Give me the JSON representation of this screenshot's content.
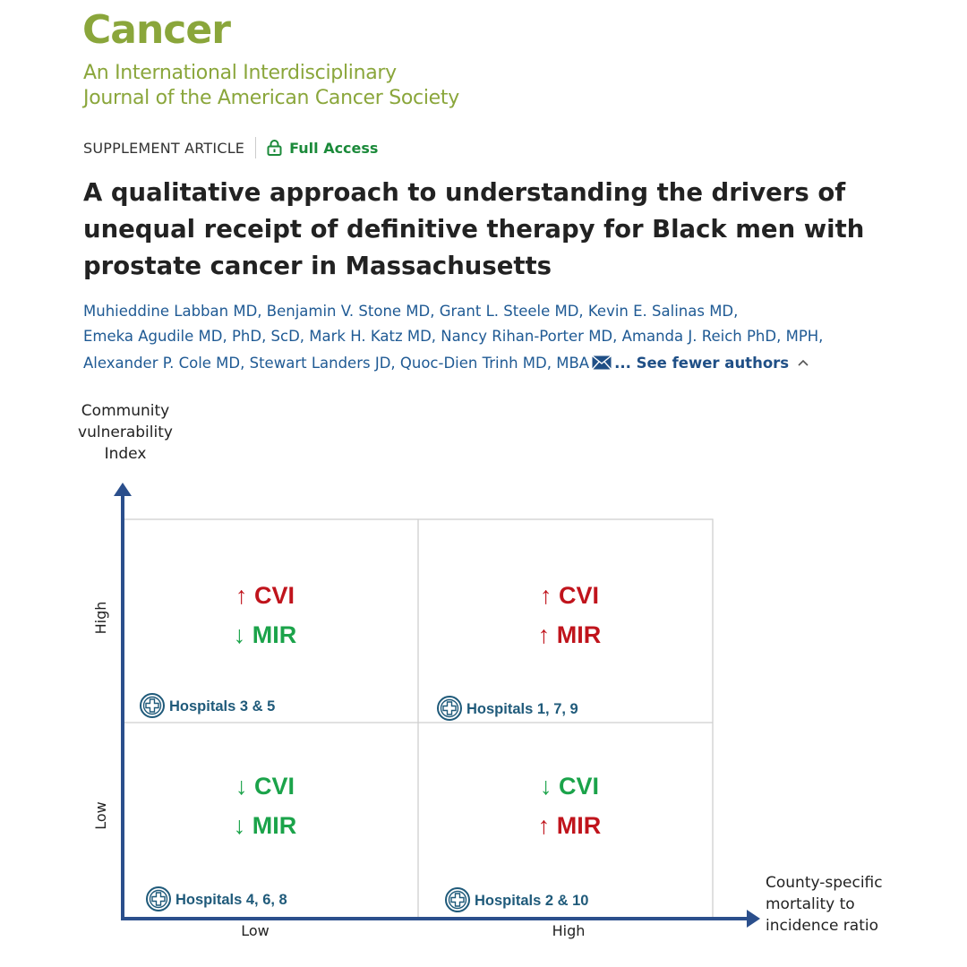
{
  "journal": {
    "name": "Cancer",
    "subtitle_line1": "An International Interdisciplinary",
    "subtitle_line2": "Journal of the American Cancer Society",
    "brand_color": "#8aa63b"
  },
  "article": {
    "type": "SUPPLEMENT ARTICLE",
    "access_label": "Full Access",
    "access_icon": "lock-icon",
    "title": "A qualitative approach to understanding the drivers of unequal receipt of definitive therapy for Black men with prostate cancer in Massachusetts",
    "author_lines": [
      "Muhieddine Labban MD, Benjamin V. Stone MD, Grant L. Steele MD, Kevin E. Salinas MD,",
      "Emeka Agudile MD, PhD, ScD, Mark H. Katz MD, Nancy Rihan-Porter MD, Amanda J. Reich PhD, MPH,",
      "Alexander P. Cole MD, Stewart Landers JD, Quoc-Dien Trinh MD, MBA"
    ],
    "contact_icon": "envelope-icon",
    "see_fewer_label": "... See fewer authors",
    "chevron_icon": "chevron-up-icon"
  },
  "figure": {
    "y_axis_title": [
      "Community",
      "vulnerability",
      "Index"
    ],
    "x_axis_title": [
      "County-specific",
      "mortality to",
      "incidence ratio"
    ],
    "y_ticks": [
      "Low",
      "High"
    ],
    "x_ticks": [
      "Low",
      "High"
    ],
    "colors": {
      "up": "#c0141c",
      "down": "#1ba34a",
      "axis": "#2b4f8c",
      "hospital": "#1f5a7a"
    },
    "quadrants": {
      "top_left": {
        "cvi": "↑ CVI",
        "cvi_dir": "up",
        "mir": "↓ MIR",
        "mir_dir": "down",
        "hospitals": "Hospitals 3 & 5"
      },
      "top_right": {
        "cvi": "↑ CVI",
        "cvi_dir": "up",
        "mir": "↑ MIR",
        "mir_dir": "up",
        "hospitals": "Hospitals 1, 7, 9"
      },
      "bottom_left": {
        "cvi": "↓ CVI",
        "cvi_dir": "down",
        "mir": "↓ MIR",
        "mir_dir": "down",
        "hospitals": "Hospitals 4, 6, 8"
      },
      "bottom_right": {
        "cvi": "↓ CVI",
        "cvi_dir": "down",
        "mir": "↑ MIR",
        "mir_dir": "up",
        "hospitals": "Hospitals 2 & 10"
      }
    },
    "hospital_icon": "hospital-cross-icon"
  }
}
